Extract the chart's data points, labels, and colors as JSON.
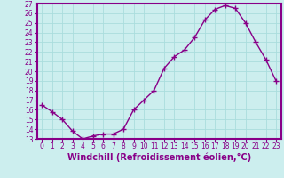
{
  "x": [
    0,
    1,
    2,
    3,
    4,
    5,
    6,
    7,
    8,
    9,
    10,
    11,
    12,
    13,
    14,
    15,
    16,
    17,
    18,
    19,
    20,
    21,
    22,
    23
  ],
  "y": [
    16.5,
    15.8,
    15.0,
    13.8,
    13.0,
    13.3,
    13.5,
    13.5,
    14.0,
    16.0,
    17.0,
    18.0,
    20.3,
    21.5,
    22.2,
    23.5,
    25.3,
    26.4,
    26.8,
    26.5,
    25.0,
    23.0,
    21.2,
    19.0
  ],
  "line_color": "#880088",
  "marker": "+",
  "marker_size": 4,
  "marker_linewidth": 1.0,
  "line_width": 1.0,
  "bg_color": "#cceeee",
  "grid_color": "#aadddd",
  "xlim": [
    -0.5,
    23.5
  ],
  "ylim": [
    13,
    27
  ],
  "yticks": [
    13,
    14,
    15,
    16,
    17,
    18,
    19,
    20,
    21,
    22,
    23,
    24,
    25,
    26,
    27
  ],
  "xtick_labels": [
    "0",
    "1",
    "2",
    "3",
    "4",
    "5",
    "6",
    "7",
    "8",
    "9",
    "10",
    "11",
    "12",
    "13",
    "14",
    "15",
    "16",
    "17",
    "18",
    "19",
    "20",
    "21",
    "22",
    "23"
  ],
  "xlabel": "Windchill (Refroidissement éolien,°C)",
  "xlabel_fontsize": 7,
  "tick_fontsize": 5.5,
  "axis_label_color": "#880088",
  "tick_color": "#880088",
  "border_color": "#880088",
  "border_linewidth": 1.5
}
